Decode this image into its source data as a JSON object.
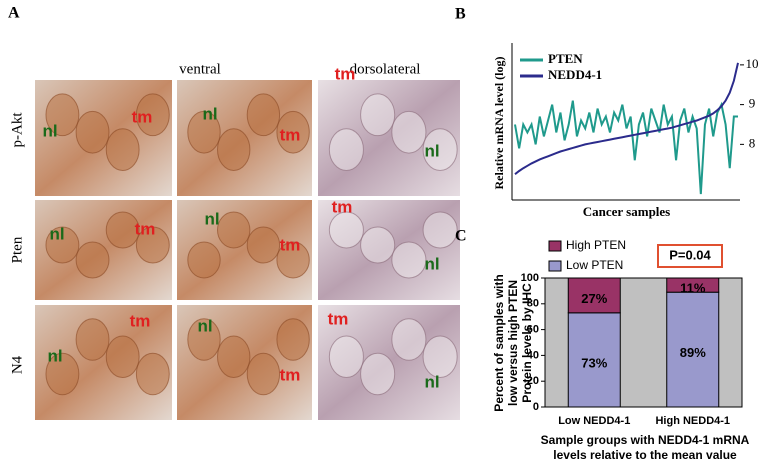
{
  "panel_a": {
    "label": "A",
    "columns": [
      "ventral",
      "dorsolateral"
    ],
    "rows": [
      "p-Akt",
      "Pten",
      "N4"
    ],
    "tiles": [
      [
        [
          "nl",
          "tm"
        ],
        [
          "nl",
          "tm"
        ],
        [
          "tm",
          "nl"
        ]
      ],
      [
        [
          "nl",
          "tm"
        ],
        [
          "nl",
          "tm"
        ],
        [
          "tm",
          "nl"
        ]
      ],
      [
        [
          "nl",
          "tm"
        ],
        [
          "nl",
          "tm"
        ],
        [
          "tm",
          "nl"
        ]
      ]
    ]
  },
  "chart_data": [
    {
      "type": "line",
      "panel_label": "B",
      "ylabel": "Relative mRNA level (log)",
      "xlabel": "Cancer samples",
      "x": [
        1,
        2,
        3,
        4,
        5,
        6,
        7,
        8,
        9,
        10,
        11,
        12,
        13,
        14,
        15,
        16,
        17,
        18,
        19,
        20,
        21,
        22,
        23,
        24,
        25,
        26,
        27,
        28,
        29,
        30,
        31,
        32,
        33,
        34,
        35,
        36,
        37,
        38,
        39,
        40,
        41,
        42,
        43,
        44,
        45,
        46,
        47,
        48,
        49,
        50,
        51,
        52,
        53,
        54,
        55
      ],
      "xlim": [
        1,
        55
      ],
      "ylim": [
        6.6,
        10.5
      ],
      "yticks": [
        8,
        9,
        10
      ],
      "legend": "upper left",
      "series": [
        {
          "name": "PTEN",
          "color": "#1f9a8c",
          "values": [
            8.5,
            7.9,
            8.5,
            8.3,
            8.5,
            8.0,
            8.7,
            8.2,
            8.6,
            9.0,
            8.3,
            8.8,
            8.1,
            8.5,
            9.1,
            8.2,
            8.6,
            8.4,
            8.8,
            8.3,
            8.9,
            8.5,
            8.7,
            8.3,
            8.8,
            8.6,
            9.0,
            8.4,
            8.7,
            7.6,
            8.5,
            8.8,
            8.2,
            8.9,
            8.6,
            8.3,
            9.0,
            8.5,
            8.7,
            7.6,
            8.6,
            8.9,
            8.3,
            8.7,
            8.4,
            6.75,
            8.5,
            8.9,
            8.2,
            8.8,
            9.0,
            8.5,
            7.4,
            8.7,
            8.7
          ]
        },
        {
          "name": "NEDD4-1",
          "color": "#2b2b8c",
          "values": [
            7.25,
            7.33,
            7.4,
            7.46,
            7.52,
            7.57,
            7.62,
            7.66,
            7.7,
            7.74,
            7.78,
            7.82,
            7.85,
            7.88,
            7.91,
            7.94,
            7.97,
            8.0,
            8.02,
            8.04,
            8.06,
            8.08,
            8.1,
            8.12,
            8.14,
            8.16,
            8.18,
            8.2,
            8.22,
            8.24,
            8.26,
            8.28,
            8.3,
            8.32,
            8.34,
            8.36,
            8.38,
            8.4,
            8.42,
            8.45,
            8.48,
            8.51,
            8.54,
            8.57,
            8.6,
            8.64,
            8.68,
            8.72,
            8.78,
            8.86,
            8.96,
            9.1,
            9.3,
            9.6,
            10.05
          ]
        }
      ]
    },
    {
      "type": "stacked_bar",
      "panel_label": "C",
      "ylabel": [
        "Percent of samples with",
        "low versus high PTEN",
        "Protein levels by IHC"
      ],
      "xlabel": [
        "Sample groups with NEDD4-1 mRNA",
        "levels relative to the mean value"
      ],
      "annotation": "P=0.04",
      "categories": [
        "Low NEDD4-1",
        "High NEDD4-1"
      ],
      "ylim": [
        0,
        100
      ],
      "yticks": [
        0,
        20,
        40,
        60,
        80,
        100
      ],
      "legend": "upper left",
      "series": [
        {
          "name": "Low PTEN",
          "color": "#9999cc",
          "values": [
            73,
            89
          ],
          "value_labels": [
            "73%",
            "89%"
          ]
        },
        {
          "name": "High PTEN",
          "color": "#993366",
          "values": [
            27,
            11
          ],
          "value_labels": [
            "27%",
            "11%"
          ]
        }
      ]
    }
  ]
}
